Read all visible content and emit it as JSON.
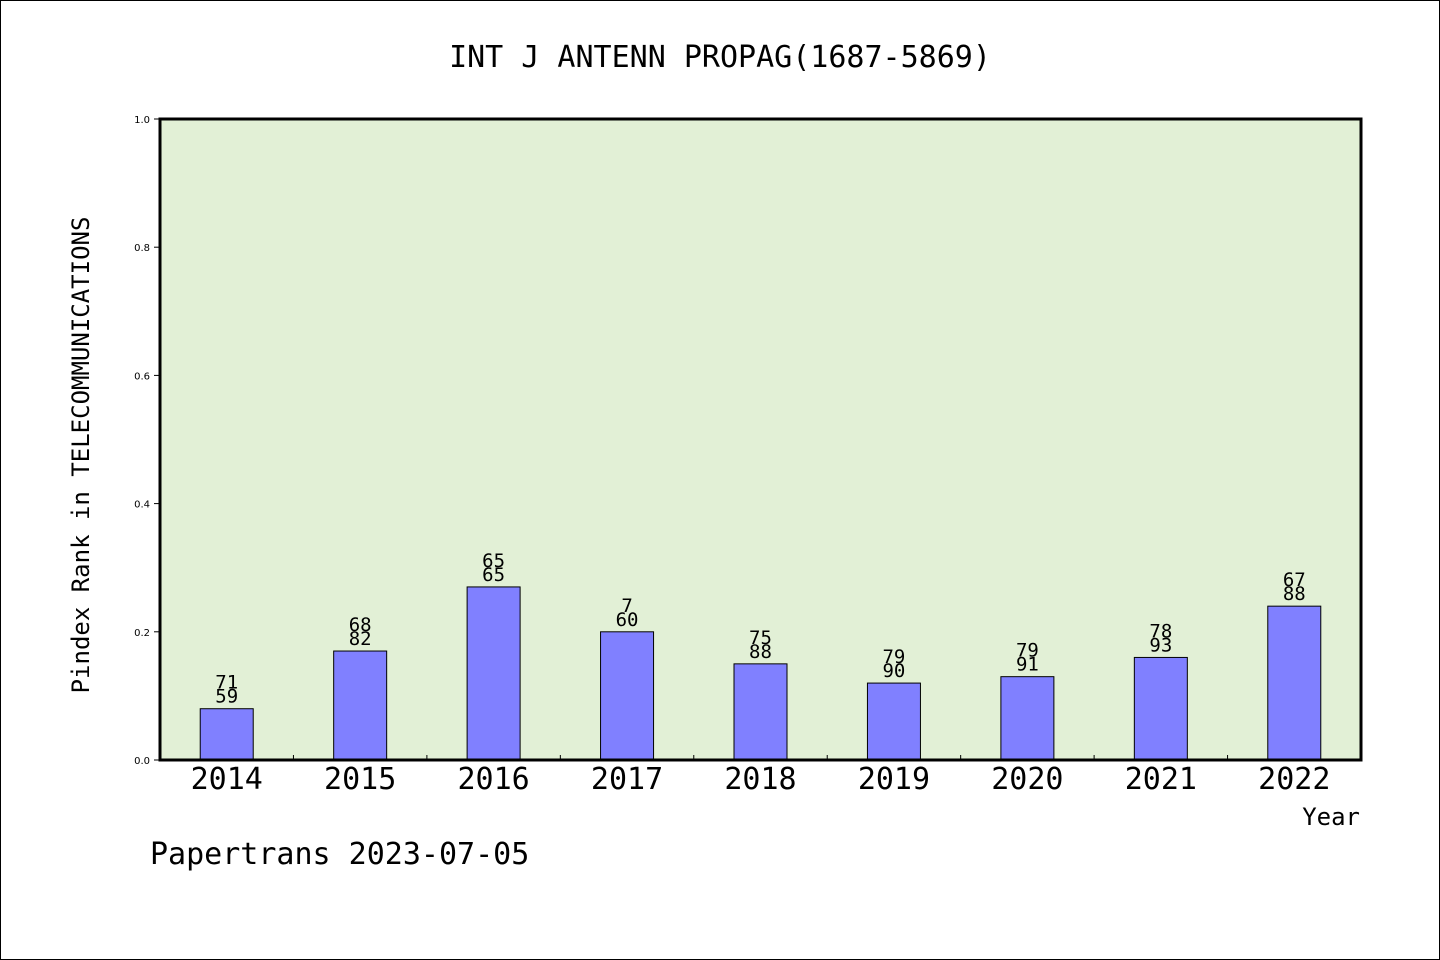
{
  "chart_data": {
    "type": "bar",
    "title": "INT J ANTENN PROPAG(1687-5869)",
    "xlabel": "Year",
    "ylabel": "Pindex Rank in TELECOMMUNICATIONS",
    "ylim": [
      0,
      1.0
    ],
    "yticks": [
      "0.0",
      "0.2",
      "0.4",
      "0.6",
      "0.8",
      "1.0"
    ],
    "yticks_values": [
      0,
      0.2,
      0.4,
      0.6,
      0.8,
      1.0
    ],
    "categories": [
      "2014",
      "2015",
      "2016",
      "2017",
      "2018",
      "2019",
      "2020",
      "2021",
      "2022"
    ],
    "values": [
      0.08,
      0.17,
      0.27,
      0.2,
      0.15,
      0.12,
      0.13,
      0.16,
      0.24
    ],
    "labels_top": [
      "71",
      "68",
      "65",
      "7",
      "75",
      "79",
      "79",
      "78",
      "67"
    ],
    "labels_bottom": [
      "59",
      "82",
      "65",
      "60",
      "88",
      "90",
      "91",
      "93",
      "88"
    ],
    "grid": false,
    "colors": {
      "bar": "#8080ff",
      "plot_background": "#e2f0d6",
      "axis": "#000000"
    }
  },
  "footer": "Papertrans 2023-07-05"
}
